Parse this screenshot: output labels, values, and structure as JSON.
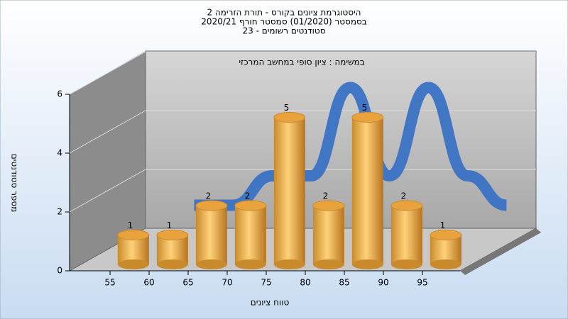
{
  "chart_data": {
    "type": "bar",
    "title": [
      "היסטוגרמת ציונים בקורס - תורת הזרימה 2",
      "בסמסטר  (01/2020)  סמסטר חורף 2020/21",
      "סטודנטים רשומים - 23"
    ],
    "subtitle": "במשימה : ציון סופי במחשב המרכזי",
    "x_label": "טווח ציונים",
    "y_label": "מספר סטודנטים",
    "categories": [
      "55",
      "60",
      "65",
      "70",
      "75",
      "80",
      "85",
      "90",
      "95"
    ],
    "values": [
      1,
      1,
      2,
      2,
      5,
      2,
      5,
      2,
      1
    ],
    "color": "#e8a33c",
    "line_color": "#3a72c4",
    "ylim": [
      0,
      6
    ],
    "yticks": [
      0,
      2,
      4,
      6
    ],
    "grid": true
  }
}
